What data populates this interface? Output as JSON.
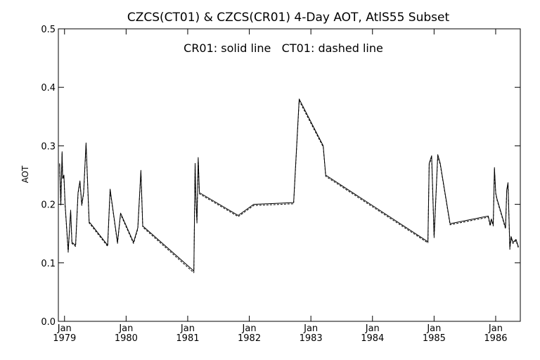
{
  "chart_data": {
    "type": "line",
    "title": "CZCS(CT01) & CZCS(CR01) 4-Day AOT, AtlS55 Subset",
    "annotation": "CR01: solid line   CT01: dashed line",
    "xlabel": "",
    "ylabel": "AOT",
    "xlim": [
      1978.9,
      1986.4
    ],
    "ylim": [
      0.0,
      0.5
    ],
    "yticks": [
      0.0,
      0.1,
      0.2,
      0.3,
      0.4,
      0.5
    ],
    "ytick_labels": [
      "0.0",
      "0.1",
      "0.2",
      "0.3",
      "0.4",
      "0.5"
    ],
    "xticks": [
      1979.0,
      1980.0,
      1981.0,
      1982.0,
      1983.0,
      1984.0,
      1985.0,
      1986.0
    ],
    "xtick_labels_top": [
      "Jan",
      "Jan",
      "Jan",
      "Jan",
      "Jan",
      "Jan",
      "Jan",
      "Jan"
    ],
    "xtick_labels_bottom": [
      "1979",
      "1980",
      "1981",
      "1982",
      "1983",
      "1984",
      "1985",
      "1986"
    ],
    "grid": false,
    "series": [
      {
        "name": "CR01",
        "style": "solid",
        "x": [
          1978.92,
          1978.94,
          1978.96,
          1978.97,
          1978.99,
          1979.01,
          1979.06,
          1979.1,
          1979.12,
          1979.18,
          1979.22,
          1979.25,
          1979.28,
          1979.31,
          1979.35,
          1979.4,
          1979.44,
          1979.7,
          1979.74,
          1979.86,
          1979.91,
          1980.12,
          1980.19,
          1980.24,
          1980.27,
          1981.1,
          1981.12,
          1981.13,
          1981.15,
          1981.17,
          1981.19,
          1981.82,
          1982.07,
          1982.72,
          1982.81,
          1983.2,
          1983.24,
          1984.9,
          1984.92,
          1984.96,
          1985.0,
          1985.06,
          1985.1,
          1985.26,
          1985.88,
          1985.91,
          1985.93,
          1985.96,
          1985.98,
          1986.0,
          1986.02,
          1986.16,
          1986.18,
          1986.2,
          1986.23,
          1986.25,
          1986.28,
          1986.33,
          1986.37
        ],
        "y": [
          0.27,
          0.2,
          0.29,
          0.245,
          0.25,
          0.2,
          0.12,
          0.19,
          0.135,
          0.13,
          0.22,
          0.24,
          0.2,
          0.22,
          0.305,
          0.17,
          0.165,
          0.13,
          0.226,
          0.135,
          0.185,
          0.135,
          0.16,
          0.258,
          0.163,
          0.086,
          0.27,
          0.22,
          0.17,
          0.28,
          0.22,
          0.181,
          0.2,
          0.203,
          0.38,
          0.3,
          0.25,
          0.136,
          0.27,
          0.283,
          0.145,
          0.285,
          0.27,
          0.167,
          0.18,
          0.165,
          0.175,
          0.165,
          0.263,
          0.22,
          0.21,
          0.16,
          0.225,
          0.237,
          0.125,
          0.145,
          0.135,
          0.14,
          0.127
        ]
      },
      {
        "name": "CT01",
        "style": "dashed",
        "x": [
          1978.92,
          1978.94,
          1978.96,
          1978.97,
          1978.99,
          1979.01,
          1979.06,
          1979.1,
          1979.12,
          1979.18,
          1979.22,
          1979.25,
          1979.28,
          1979.31,
          1979.35,
          1979.4,
          1979.44,
          1979.7,
          1979.74,
          1979.86,
          1979.91,
          1980.12,
          1980.19,
          1980.24,
          1980.27,
          1981.1,
          1981.12,
          1981.13,
          1981.15,
          1981.17,
          1981.19,
          1981.82,
          1982.07,
          1982.72,
          1982.81,
          1983.2,
          1983.24,
          1984.9,
          1984.92,
          1984.96,
          1985.0,
          1985.06,
          1985.1,
          1985.26,
          1985.88,
          1985.91,
          1985.93,
          1985.96,
          1985.98,
          1986.0,
          1986.02,
          1986.16,
          1986.18,
          1986.2,
          1986.23,
          1986.25,
          1986.28,
          1986.33,
          1986.37
        ],
        "y": [
          0.268,
          0.198,
          0.287,
          0.243,
          0.248,
          0.198,
          0.118,
          0.188,
          0.133,
          0.128,
          0.218,
          0.238,
          0.198,
          0.218,
          0.302,
          0.168,
          0.163,
          0.128,
          0.224,
          0.133,
          0.183,
          0.133,
          0.158,
          0.255,
          0.161,
          0.083,
          0.267,
          0.218,
          0.168,
          0.277,
          0.218,
          0.179,
          0.198,
          0.201,
          0.377,
          0.298,
          0.248,
          0.134,
          0.268,
          0.28,
          0.143,
          0.282,
          0.268,
          0.165,
          0.178,
          0.163,
          0.173,
          0.163,
          0.26,
          0.218,
          0.208,
          0.158,
          0.223,
          0.235,
          0.123,
          0.143,
          0.133,
          0.138,
          0.125
        ]
      }
    ]
  }
}
